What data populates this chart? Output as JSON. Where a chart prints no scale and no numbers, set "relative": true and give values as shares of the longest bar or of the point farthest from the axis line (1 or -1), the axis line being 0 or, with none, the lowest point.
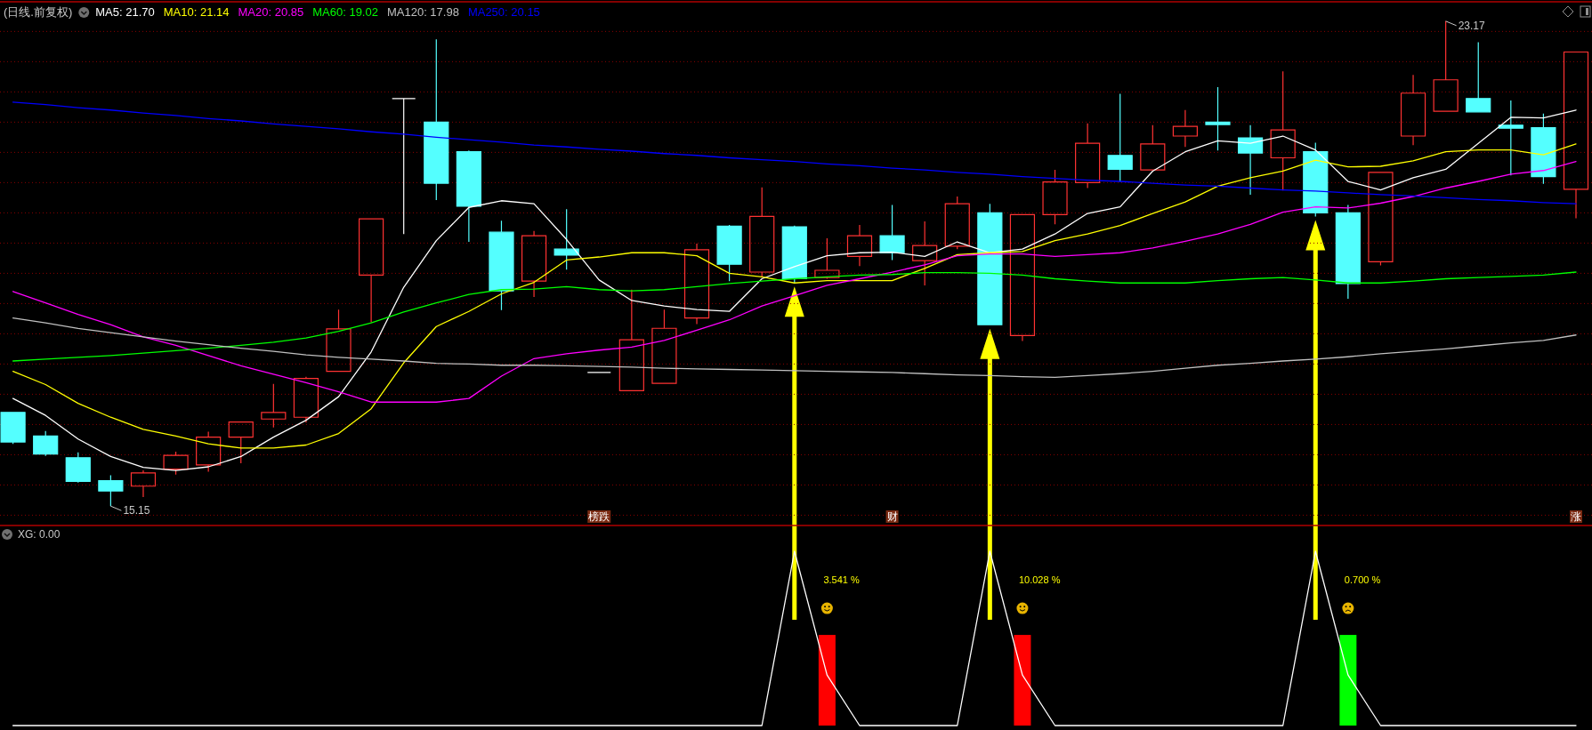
{
  "chart_data": [
    {
      "type": "candlestick",
      "title": "(日线.前复权)",
      "legend": "top left",
      "grid": "y",
      "yticks": [
        {
          "value": 15,
          "label": null
        },
        {
          "value": 15.5,
          "label": null
        },
        {
          "value": 16,
          "label": null
        },
        {
          "value": 16.5,
          "label": null
        },
        {
          "value": 17,
          "label": null
        },
        {
          "value": 17.5,
          "label": null
        },
        {
          "value": 18,
          "label": null
        },
        {
          "value": 18.5,
          "label": null
        },
        {
          "value": 19,
          "label": null
        },
        {
          "value": 19.5,
          "label": null
        },
        {
          "value": 20,
          "label": null
        },
        {
          "value": 20.5,
          "label": null
        },
        {
          "value": 21,
          "label": null
        },
        {
          "value": 21.5,
          "label": null
        },
        {
          "value": 22,
          "label": null
        },
        {
          "value": 22.5,
          "label": null
        },
        {
          "value": 23,
          "label": null
        }
      ],
      "categories": [
        null,
        null,
        null,
        null,
        null,
        null,
        null,
        null,
        null,
        null,
        null,
        null,
        null,
        null,
        null,
        null,
        null,
        null,
        "榜跌",
        null,
        null,
        null,
        null,
        null,
        null,
        null,
        null,
        "财",
        null,
        null,
        null,
        null,
        null,
        null,
        null,
        null,
        null,
        null,
        null,
        null,
        null,
        null,
        null,
        null,
        null,
        null,
        null,
        null,
        "涨"
      ],
      "ohlc": [
        [
          16.7,
          16.7,
          16.18,
          16.21
        ],
        [
          16.31,
          16.39,
          15.98,
          16.01
        ],
        [
          15.95,
          16.04,
          15.54,
          15.56
        ],
        [
          15.57,
          15.66,
          15.15,
          15.4
        ],
        [
          15.48,
          15.74,
          15.3,
          15.7
        ],
        [
          15.76,
          16.05,
          15.67,
          15.99
        ],
        [
          15.83,
          16.38,
          15.72,
          16.29
        ],
        [
          16.29,
          16.54,
          15.86,
          16.54
        ],
        [
          16.59,
          17.17,
          16.45,
          16.7
        ],
        [
          16.62,
          17.29,
          16.53,
          17.26
        ],
        [
          17.38,
          18.4,
          17.38,
          18.08
        ],
        [
          18.97,
          19.9,
          18.19,
          19.9
        ],
        [
          21.89,
          21.89,
          19.65,
          21.89
        ],
        [
          21.5,
          22.87,
          20.21,
          20.49
        ],
        [
          21.01,
          21.03,
          19.52,
          20.11
        ],
        [
          19.68,
          19.87,
          18.39,
          18.71
        ],
        [
          18.87,
          19.7,
          18.61,
          19.62
        ],
        [
          19.4,
          20.06,
          19.06,
          19.3
        ],
        [
          17.36,
          17.36,
          17.36,
          17.36
        ],
        [
          17.06,
          18.73,
          17.06,
          17.9
        ],
        [
          17.18,
          18.4,
          17.18,
          18.09
        ],
        [
          18.26,
          19.49,
          18.16,
          19.39
        ],
        [
          19.78,
          19.8,
          18.87,
          19.15
        ],
        [
          19.02,
          20.42,
          18.93,
          19.94
        ],
        [
          19.77,
          19.79,
          18.84,
          18.91
        ],
        [
          18.93,
          19.58,
          18.91,
          19.05
        ],
        [
          19.28,
          19.8,
          19.12,
          19.62
        ],
        [
          19.62,
          20.13,
          19.22,
          19.34
        ],
        [
          19.21,
          19.86,
          18.8,
          19.46
        ],
        [
          19.45,
          20.27,
          19.4,
          20.15
        ],
        [
          20.0,
          20.15,
          18.14,
          18.15
        ],
        [
          17.97,
          19.97,
          17.88,
          19.97
        ],
        [
          19.97,
          20.71,
          19.81,
          20.51
        ],
        [
          20.5,
          21.48,
          20.41,
          21.15
        ],
        [
          20.95,
          21.97,
          20.51,
          20.72
        ],
        [
          20.71,
          21.45,
          20.71,
          21.14
        ],
        [
          21.27,
          21.7,
          21.09,
          21.43
        ],
        [
          21.5,
          22.08,
          21.03,
          21.46
        ],
        [
          21.24,
          21.45,
          20.3,
          20.99
        ],
        [
          20.91,
          22.34,
          20.37,
          21.37
        ],
        [
          21.01,
          21.16,
          19.94,
          20.0
        ],
        [
          20.0,
          20.13,
          18.58,
          18.83
        ],
        [
          19.19,
          20.67,
          19.13,
          20.67
        ],
        [
          21.27,
          22.28,
          21.12,
          21.98
        ],
        [
          21.68,
          23.17,
          21.68,
          22.2
        ],
        [
          21.89,
          22.82,
          21.67,
          21.67
        ],
        [
          21.45,
          21.86,
          20.62,
          21.4
        ],
        [
          21.41,
          21.64,
          20.48,
          20.6
        ],
        [
          20.39,
          22.66,
          19.91,
          22.66
        ]
      ],
      "series": [
        {
          "name": "MA5: 21.70",
          "type": "line",
          "color": "#ffffff",
          "values": [
            16.93,
            16.65,
            16.26,
            15.97,
            15.79,
            15.74,
            15.8,
            15.97,
            16.29,
            16.57,
            16.96,
            17.7,
            18.77,
            19.54,
            20.09,
            20.2,
            20.15,
            19.56,
            18.89,
            18.55,
            18.46,
            18.4,
            18.37,
            18.91,
            19.11,
            19.29,
            19.34,
            19.35,
            19.28,
            19.52,
            19.34,
            19.4,
            19.65,
            19.99,
            20.1,
            20.69,
            21.01,
            21.19,
            21.15,
            21.27,
            21.04,
            20.52,
            20.38,
            20.58,
            20.72,
            21.15,
            21.58,
            21.57,
            21.7
          ]
        },
        {
          "name": "MA10: 21.14",
          "type": "line",
          "color": "#ffff00",
          "values": [
            17.38,
            17.16,
            16.85,
            16.62,
            16.42,
            16.31,
            16.18,
            16.11,
            16.11,
            16.16,
            16.35,
            16.76,
            17.52,
            18.12,
            18.37,
            18.66,
            18.85,
            19.22,
            19.27,
            19.34,
            19.34,
            19.29,
            19.0,
            18.94,
            18.84,
            18.88,
            18.88,
            18.88,
            19.08,
            19.31,
            19.34,
            19.36,
            19.54,
            19.65,
            19.79,
            19.99,
            20.18,
            20.44,
            20.58,
            20.69,
            20.87,
            20.76,
            20.77,
            20.86,
            21.01,
            21.04,
            21.04,
            20.96,
            21.14
          ]
        },
        {
          "name": "MA20: 20.85",
          "type": "line",
          "color": "#ff00ff",
          "values": [
            18.7,
            18.51,
            18.32,
            18.15,
            17.95,
            17.81,
            17.64,
            17.47,
            17.33,
            17.19,
            17.04,
            16.87,
            16.87,
            16.87,
            16.93,
            17.3,
            17.59,
            17.67,
            17.73,
            17.78,
            17.89,
            18.06,
            18.23,
            18.46,
            18.63,
            18.8,
            18.91,
            19.02,
            19.14,
            19.29,
            19.32,
            19.32,
            19.28,
            19.31,
            19.34,
            19.42,
            19.53,
            19.65,
            19.81,
            20.01,
            20.1,
            20.08,
            20.16,
            20.27,
            20.41,
            20.52,
            20.64,
            20.7,
            20.85
          ]
        },
        {
          "name": "MA60: 19.02",
          "type": "line",
          "color": "#00ff00",
          "values": [
            17.55,
            17.58,
            17.61,
            17.64,
            17.68,
            17.72,
            17.76,
            17.81,
            17.86,
            17.93,
            18.04,
            18.18,
            18.36,
            18.51,
            18.65,
            18.73,
            18.74,
            18.78,
            18.73,
            18.71,
            18.73,
            18.78,
            18.83,
            18.87,
            18.91,
            18.94,
            18.97,
            18.98,
            19.01,
            19.01,
            19.0,
            18.97,
            18.91,
            18.87,
            18.84,
            18.84,
            18.84,
            18.88,
            18.91,
            18.93,
            18.89,
            18.84,
            18.84,
            18.87,
            18.91,
            18.93,
            18.95,
            18.97,
            19.02
          ]
        },
        {
          "name": "MA120: 17.98",
          "type": "line",
          "color": "#c0c0c0",
          "values": [
            18.26,
            18.18,
            18.09,
            18.02,
            17.95,
            17.88,
            17.82,
            17.76,
            17.71,
            17.65,
            17.61,
            17.58,
            17.55,
            17.51,
            17.5,
            17.48,
            17.48,
            17.47,
            17.46,
            17.45,
            17.43,
            17.42,
            17.41,
            17.4,
            17.39,
            17.38,
            17.37,
            17.36,
            17.34,
            17.32,
            17.31,
            17.29,
            17.28,
            17.31,
            17.34,
            17.38,
            17.43,
            17.48,
            17.51,
            17.55,
            17.58,
            17.62,
            17.67,
            17.71,
            17.75,
            17.8,
            17.85,
            17.89,
            17.98
          ]
        },
        {
          "name": "MA250: 20.15",
          "type": "line",
          "color": "#0000ff",
          "values": [
            21.83,
            21.79,
            21.74,
            21.7,
            21.65,
            21.61,
            21.56,
            21.52,
            21.47,
            21.43,
            21.39,
            21.34,
            21.3,
            21.25,
            21.21,
            21.17,
            21.12,
            21.09,
            21.05,
            21.02,
            20.98,
            20.95,
            20.91,
            20.88,
            20.85,
            20.81,
            20.78,
            20.74,
            20.71,
            20.67,
            20.64,
            20.6,
            20.57,
            20.54,
            20.52,
            20.49,
            20.46,
            20.44,
            20.41,
            20.38,
            20.36,
            20.33,
            20.3,
            20.28,
            20.25,
            20.22,
            20.2,
            20.17,
            20.15
          ]
        }
      ],
      "annotations": [
        "23.17",
        "15.15"
      ]
    },
    {
      "type": "bar",
      "title": "XG: 0.00",
      "relative": true,
      "categories": [
        null,
        null,
        null,
        null,
        null,
        null,
        null,
        null,
        null,
        null,
        null,
        null,
        null,
        null,
        null,
        null,
        null,
        null,
        null,
        null,
        null,
        null,
        null,
        null,
        null,
        null,
        null,
        null,
        null,
        null,
        null,
        null,
        null,
        null,
        null,
        null,
        null,
        null,
        null,
        null,
        null,
        null,
        null,
        null,
        null,
        null,
        null,
        null,
        null
      ],
      "series": [
        {
          "type": "line",
          "color": "#ffffff",
          "values": [
            0,
            0,
            0,
            0,
            0,
            0,
            0,
            0,
            0,
            0,
            0,
            0,
            0,
            0,
            0,
            0,
            0,
            0,
            0,
            0,
            0,
            0,
            0,
            0,
            1,
            0.29,
            0,
            0,
            0,
            0,
            1,
            0.29,
            0,
            0,
            0,
            0,
            0,
            0,
            0,
            0,
            1,
            0.29,
            0,
            0,
            0,
            0,
            0,
            0,
            0
          ]
        },
        {
          "type": "bar",
          "values": [
            null,
            null,
            null,
            null,
            null,
            null,
            null,
            null,
            null,
            null,
            null,
            null,
            null,
            null,
            null,
            null,
            null,
            null,
            null,
            null,
            null,
            null,
            null,
            null,
            null,
            0.52,
            null,
            null,
            null,
            null,
            null,
            0.52,
            null,
            null,
            null,
            null,
            null,
            null,
            null,
            null,
            null,
            0.52,
            null,
            null,
            null,
            null,
            null,
            null,
            null
          ],
          "colors": [
            null,
            null,
            null,
            null,
            null,
            null,
            null,
            null,
            null,
            null,
            null,
            null,
            null,
            null,
            null,
            null,
            null,
            null,
            null,
            null,
            null,
            null,
            null,
            null,
            null,
            "#ff0000",
            null,
            null,
            null,
            null,
            null,
            "#ff0000",
            null,
            null,
            null,
            null,
            null,
            null,
            null,
            null,
            null,
            "#00ff00",
            null,
            null,
            null,
            null,
            null,
            null,
            null
          ]
        }
      ],
      "annotations": [
        "3.541 %",
        "10.028 %",
        "0.700 %"
      ]
    }
  ]
}
